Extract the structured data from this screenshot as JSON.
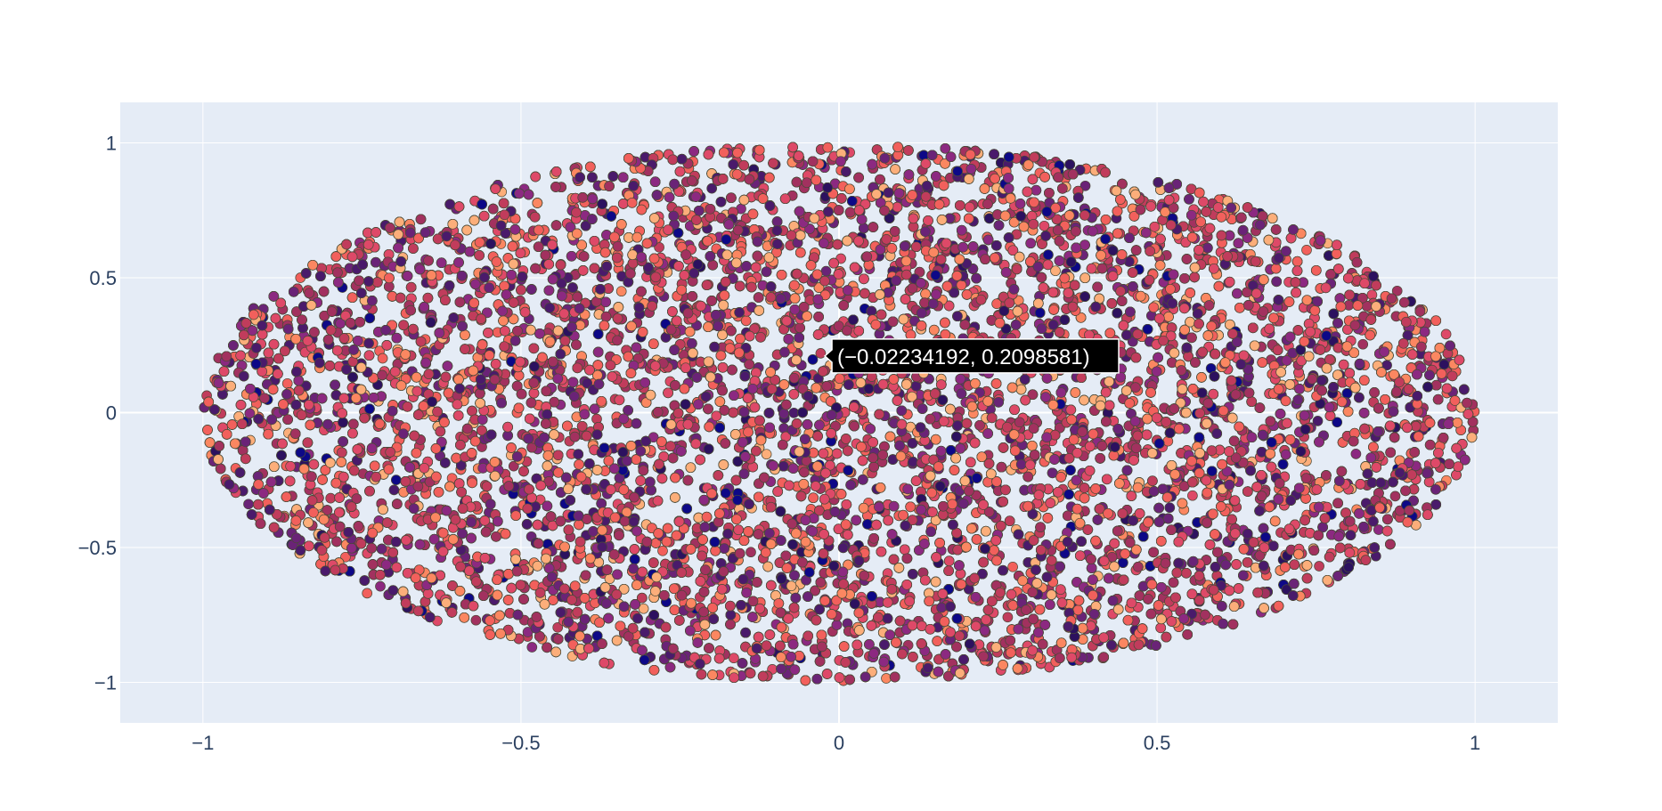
{
  "chart_data": {
    "type": "scatter",
    "title": "",
    "xlabel": "",
    "ylabel": "",
    "xlim": [
      -1.13,
      1.13
    ],
    "ylim": [
      -1.15,
      1.15
    ],
    "x_ticks": [
      -1,
      -0.5,
      0,
      0.5,
      1
    ],
    "y_ticks": [
      -1,
      -0.5,
      0,
      0.5,
      1
    ],
    "x_tick_labels": [
      "−1",
      "−0.5",
      "0",
      "0.5",
      "1"
    ],
    "y_tick_labels": [
      "1",
      "0.5",
      "0",
      "−0.5",
      "−1"
    ],
    "y_tick_values": [
      1,
      0.5,
      0,
      -0.5,
      -1
    ],
    "grid": true,
    "point_region": "points uniformly distributed inside the ellipse x² + y² ≤ 1 (unit disk, stretched by axis aspect)",
    "point_count_approx": 20000,
    "colorscale": [
      "#0d0887",
      "#2c115f",
      "#4a1a6b",
      "#6a2377",
      "#8c2981",
      "#a2315f",
      "#c13c5c",
      "#de4968",
      "#f2605c",
      "#fb8761",
      "#fcae7a"
    ],
    "hover": {
      "x": -0.02234192,
      "y": 0.2098581,
      "label": "(−0.02234192, 0.2098581)"
    },
    "colors": {
      "plot_background": "#e5ecf6",
      "grid": "#ffffff",
      "tick_text": "#2a3f5f",
      "marker_outline": "#4a4a38",
      "hover_background": "#000000",
      "hover_border": "#ffffff",
      "hover_text": "#ffffff"
    }
  }
}
